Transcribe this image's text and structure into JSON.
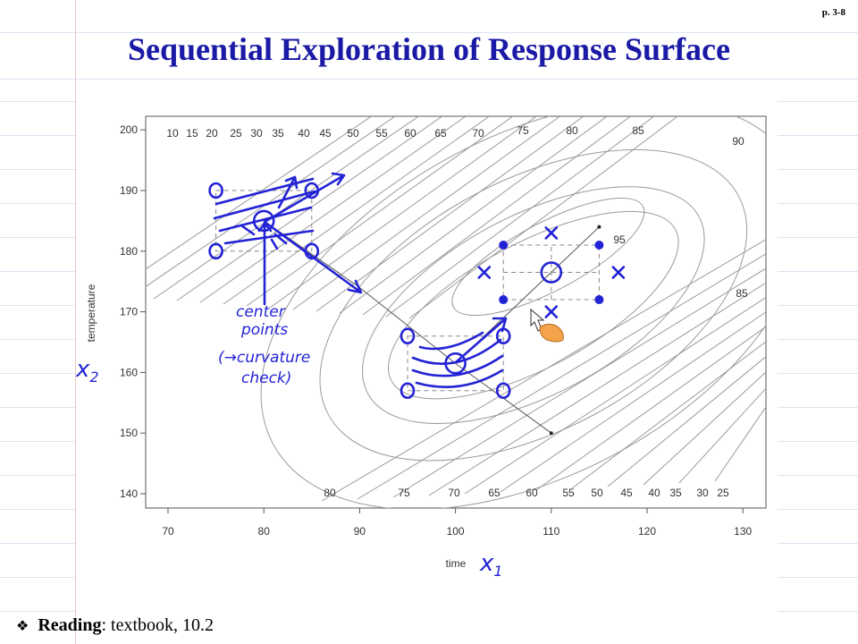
{
  "page_number": "p. 3-8",
  "title": "Sequential Exploration of Response Surface",
  "footer": {
    "bullet": "❖",
    "bold": "Reading",
    "rest": ": textbook, 10.2"
  },
  "colors": {
    "title": "#1a1aa6",
    "ink": "#2323d6",
    "contour": "#9a9a9a"
  },
  "chart_data": {
    "type": "contour",
    "xlabel": "time",
    "ylabel": "temperature",
    "xlim": [
      67,
      132
    ],
    "ylim": [
      138,
      201
    ],
    "xticks": [
      70,
      80,
      90,
      100,
      110,
      120,
      130
    ],
    "yticks": [
      140,
      150,
      160,
      170,
      180,
      190,
      200
    ],
    "top_contour_labels": [
      "10",
      "15",
      "20",
      "25",
      "30",
      "35",
      "40",
      "45",
      "50",
      "55",
      "60",
      "65",
      "70",
      "75",
      "80",
      "85",
      "90"
    ],
    "bottom_contour_labels": [
      "80",
      "75",
      "70",
      "65",
      "60",
      "55",
      "50",
      "45",
      "40",
      "35",
      "30",
      "25"
    ],
    "inner_labels": [
      "95",
      "85"
    ],
    "optimum": {
      "x": 110,
      "y": 177
    },
    "design_points": [
      {
        "x": 75,
        "y": 190
      },
      {
        "x": 85,
        "y": 190
      },
      {
        "x": 75,
        "y": 180
      },
      {
        "x": 85,
        "y": 180
      },
      {
        "x": 80,
        "y": 185
      },
      {
        "x": 95,
        "y": 166
      },
      {
        "x": 105,
        "y": 166
      },
      {
        "x": 95,
        "y": 157
      },
      {
        "x": 105,
        "y": 157
      },
      {
        "x": 100,
        "y": 161.5
      },
      {
        "x": 105,
        "y": 181
      },
      {
        "x": 115,
        "y": 181
      },
      {
        "x": 105,
        "y": 172
      },
      {
        "x": 115,
        "y": 172
      },
      {
        "x": 110,
        "y": 176.5
      }
    ],
    "axial_points": [
      {
        "x": 110,
        "y": 183
      },
      {
        "x": 110,
        "y": 170
      },
      {
        "x": 103,
        "y": 176.5
      },
      {
        "x": 117,
        "y": 176.5
      }
    ],
    "annotations": [
      "center points",
      "(→curvature check)",
      "x2",
      "x1"
    ]
  }
}
